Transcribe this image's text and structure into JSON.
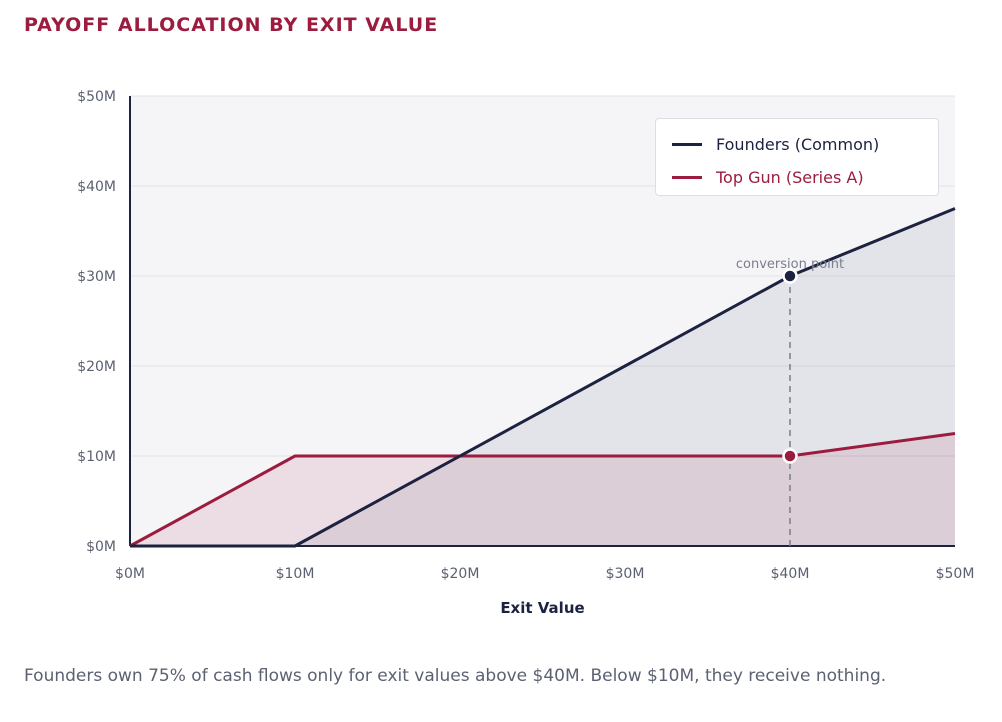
{
  "title": "PAYOFF ALLOCATION BY EXIT VALUE",
  "caption": "Founders own 75% of cash flows only for exit values above $40M. Below $10M, they receive nothing.",
  "colors": {
    "title": "#9c1c3f",
    "founders": "#1c2240",
    "series_a": "#9c1c3f",
    "plot_bg": "#f5f5f8",
    "grid": "#e2e3e8",
    "axis_text": "#5c6172"
  },
  "chart_data": {
    "type": "area",
    "xlabel": "Exit Value",
    "ylabel": "",
    "xlim": [
      0,
      50
    ],
    "ylim": [
      0,
      50
    ],
    "x_ticks": [
      "$0M",
      "$10M",
      "$20M",
      "$30M",
      "$40M",
      "$50M"
    ],
    "y_ticks": [
      "$0M",
      "$10M",
      "$20M",
      "$30M",
      "$40M",
      "$50M"
    ],
    "grid": true,
    "legend_position": "top-right",
    "series": [
      {
        "name": "Founders (Common)",
        "points": [
          [
            0,
            0
          ],
          [
            10,
            0
          ],
          [
            40,
            30
          ],
          [
            50,
            37.5
          ]
        ]
      },
      {
        "name": "Top Gun (Series A)",
        "points": [
          [
            0,
            0
          ],
          [
            10,
            10
          ],
          [
            40,
            10
          ],
          [
            50,
            12.5
          ]
        ]
      }
    ],
    "annotation": {
      "label": "conversion point",
      "x": 40
    }
  }
}
